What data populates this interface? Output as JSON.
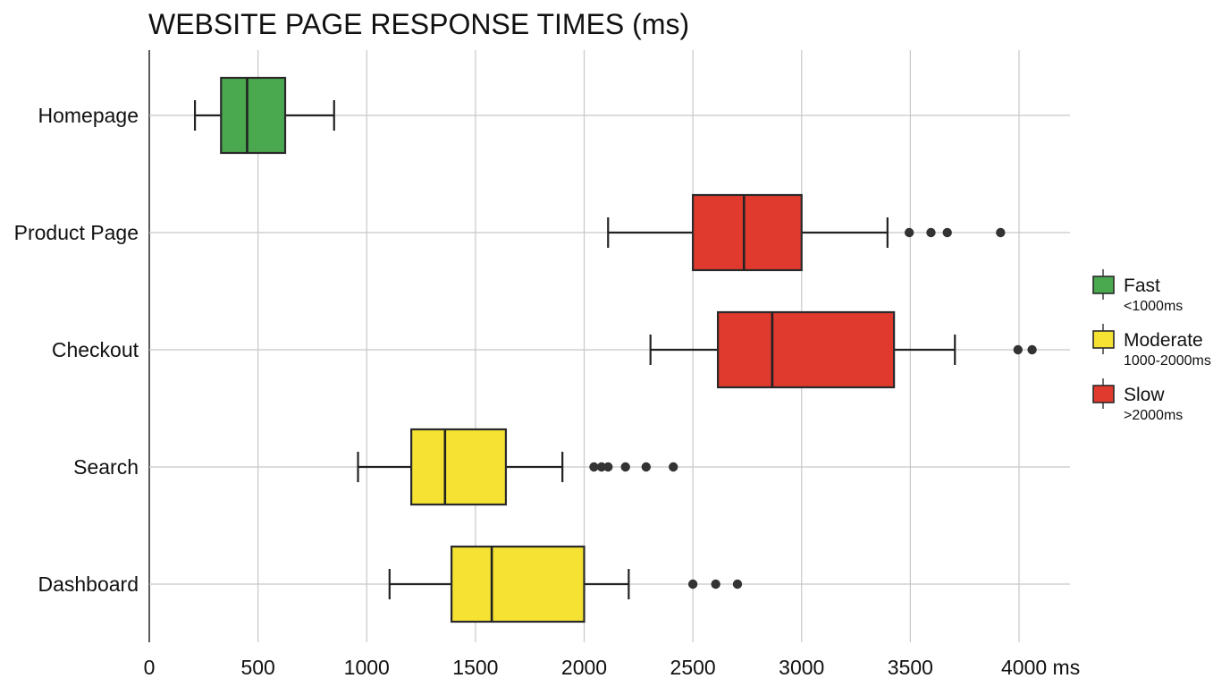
{
  "chart_data": {
    "type": "boxplot",
    "orientation": "horizontal",
    "title": "WEBSITE PAGE RESPONSE TIMES (ms)",
    "xlabel": "",
    "ylabel": "",
    "xlim": [
      0,
      4200
    ],
    "x_ticks": [
      0,
      500,
      1000,
      1500,
      2000,
      2500,
      3000,
      3500,
      4000
    ],
    "x_tick_labels": [
      "0",
      "500",
      "1000",
      "1500",
      "2000",
      "2500",
      "3000",
      "3500",
      "4000 ms"
    ],
    "grid": true,
    "legend_position": "right",
    "categories": [
      "Homepage",
      "Product Page",
      "Checkout",
      "Search",
      "Dashboard"
    ],
    "boxes": [
      {
        "category": "Homepage",
        "speed": "Fast",
        "whisker_low": 210,
        "q1": 330,
        "median": 450,
        "q3": 625,
        "whisker_high": 850,
        "outliers": []
      },
      {
        "category": "Product Page",
        "speed": "Slow",
        "whisker_low": 2110,
        "q1": 2500,
        "median": 2735,
        "q3": 3000,
        "whisker_high": 3395,
        "outliers": [
          3495,
          3595,
          3670,
          3915
        ]
      },
      {
        "category": "Checkout",
        "speed": "Slow",
        "whisker_low": 2305,
        "q1": 2615,
        "median": 2865,
        "q3": 3425,
        "whisker_high": 3705,
        "outliers": [
          3995,
          4060
        ]
      },
      {
        "category": "Search",
        "speed": "Moderate",
        "whisker_low": 960,
        "q1": 1205,
        "median": 1360,
        "q3": 1640,
        "whisker_high": 1900,
        "outliers": [
          2045,
          2080,
          2110,
          2190,
          2285,
          2410
        ]
      },
      {
        "category": "Dashboard",
        "speed": "Moderate",
        "whisker_low": 1105,
        "q1": 1390,
        "median": 1575,
        "q3": 2000,
        "whisker_high": 2205,
        "outliers": [
          2500,
          2605,
          2705
        ]
      }
    ],
    "legend": [
      {
        "name": "Fast",
        "range": "<1000ms",
        "color": "#4aa84f"
      },
      {
        "name": "Moderate",
        "range": "1000-2000ms",
        "color": "#f5e233"
      },
      {
        "name": "Slow",
        "range": ">2000ms",
        "color": "#e03a2f"
      }
    ]
  }
}
